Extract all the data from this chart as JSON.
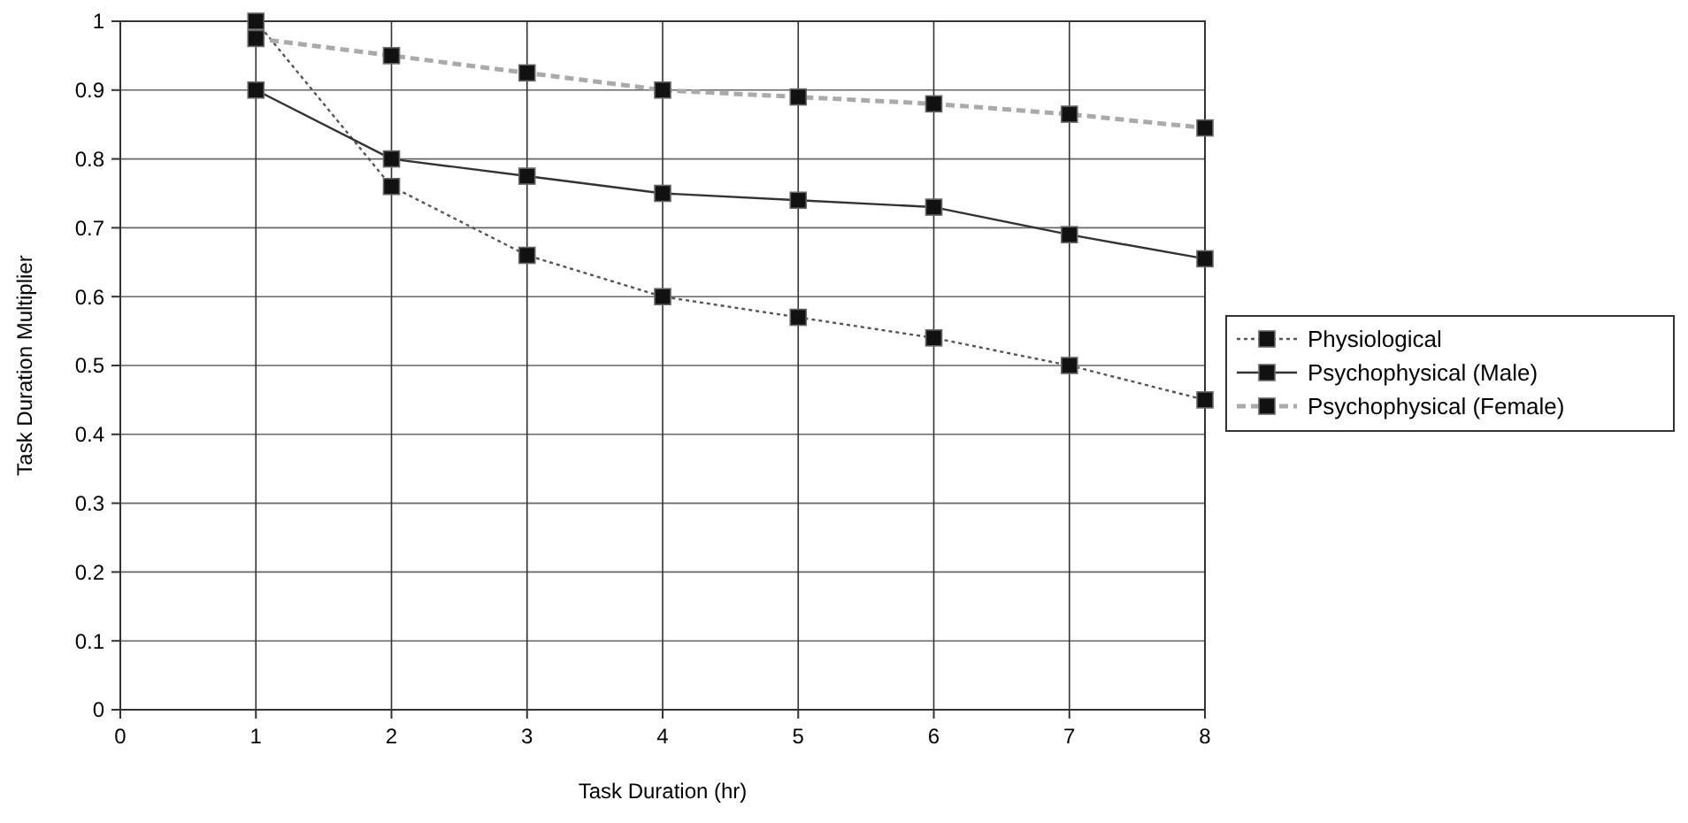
{
  "chart_data": {
    "type": "line",
    "xlabel": "Task Duration (hr)",
    "ylabel": "Task Duration Multiplier",
    "x": [
      1,
      2,
      3,
      4,
      5,
      6,
      7,
      8
    ],
    "series": [
      {
        "name": "Physiological",
        "color": "#555555",
        "line_style": "dotted",
        "values": [
          1.0,
          0.76,
          0.66,
          0.6,
          0.57,
          0.54,
          0.5,
          0.45
        ]
      },
      {
        "name": "Psychophysical (Male)",
        "color": "#333333",
        "line_style": "solid",
        "values": [
          0.9,
          0.8,
          0.775,
          0.75,
          0.74,
          0.73,
          0.69,
          0.655
        ]
      },
      {
        "name": "Psychophysical (Female)",
        "color": "#aaaaaa",
        "line_style": "dashed",
        "values": [
          0.975,
          0.95,
          0.925,
          0.9,
          0.89,
          0.88,
          0.865,
          0.845
        ]
      }
    ],
    "xlim": [
      0,
      8
    ],
    "xticks": [
      0,
      1,
      2,
      3,
      4,
      5,
      6,
      7,
      8
    ],
    "ylim": [
      0,
      1
    ],
    "yticks": [
      0,
      0.1,
      0.2,
      0.3,
      0.4,
      0.5,
      0.6,
      0.7,
      0.8,
      0.9,
      1
    ],
    "grid": true,
    "legend": "right",
    "marker": "square"
  }
}
